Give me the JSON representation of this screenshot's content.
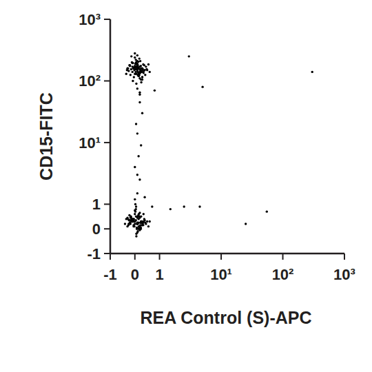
{
  "chart_data": {
    "type": "scatter",
    "x_label": "REA Control (S)-APC",
    "y_label": "CD15-FITC",
    "log": true,
    "color": "#000000",
    "marker": "dot",
    "xlim": [
      -1,
      1000
    ],
    "ylim": [
      -1,
      1000
    ],
    "xticks": [
      -1,
      0,
      1,
      {
        "value": 10,
        "label": "10¹"
      },
      {
        "value": 100,
        "label": "10²"
      },
      {
        "value": 1000,
        "label": "10³"
      }
    ],
    "yticks": [
      -1,
      0,
      1,
      {
        "value": 10,
        "label": "10¹"
      },
      {
        "value": 100,
        "label": "10²"
      },
      {
        "value": 1000,
        "label": "10³"
      }
    ],
    "x": [
      0.1,
      -0.1,
      0.2,
      0.0,
      0.3,
      -0.2,
      0.15,
      0.05,
      0.25,
      -0.05,
      0.35,
      0.1,
      -0.15,
      0.2,
      0.0,
      0.4,
      -0.3,
      0.12,
      0.22,
      0.08,
      -0.08,
      0.28,
      0.18,
      0.02,
      -0.25,
      0.45,
      0.1,
      0.3,
      -0.1,
      0.05,
      0.15,
      0.25,
      -0.02,
      0.38,
      0.0,
      0.2,
      -0.18,
      0.1,
      0.32,
      0.06,
      -0.12,
      0.5,
      0.14,
      0.24,
      -0.06,
      0.04,
      0.36,
      0.16,
      -0.22,
      0.26,
      0.08,
      0.12,
      0.55,
      -0.35,
      0.2,
      0.0,
      0.3,
      0.1,
      -0.1,
      0.22,
      0.18,
      0.02,
      0.42,
      -0.28,
      0.14,
      0.28,
      0.06,
      -0.04,
      0.34,
      0.1,
      0.6,
      -0.2,
      0.2,
      0.08,
      0.16,
      -0.14,
      0.26,
      0.04,
      0.3,
      0.12,
      0.0,
      0.24,
      -0.08,
      0.18,
      0.48,
      -0.32,
      0.1,
      0.22,
      0.06,
      0.14,
      0.0,
      0.1,
      -0.1,
      0.2,
      -0.2,
      0.3,
      0.05,
      -0.05,
      0.15,
      -0.15,
      0.25,
      -0.25,
      0.35,
      -0.3,
      0.4,
      0.12,
      -0.12,
      0.22,
      -0.22,
      0.08,
      -0.08,
      0.18,
      -0.18,
      0.28,
      0.02,
      -0.02,
      0.32,
      -0.35,
      0.45,
      0.06,
      -0.06,
      0.16,
      -0.16,
      0.26,
      -0.26,
      0.04,
      0.14,
      -0.04,
      0.24,
      0.5,
      -0.4,
      0.1,
      0.0,
      0.2,
      -0.1,
      0.3,
      0.05,
      -0.2,
      0.15,
      0.35,
      -0.05,
      0.25,
      0.1,
      -0.15,
      0.0,
      0.6,
      -0.3,
      0.2,
      0.08,
      -0.08,
      0.12,
      0.38,
      -0.12,
      0.02,
      0.22,
      -0.22,
      0.42,
      0.18,
      -0.02,
      0.28,
      0.06,
      -0.28,
      0.32,
      0.14,
      -0.14,
      0.55,
      0.0,
      0.1,
      -0.06,
      0.24,
      0.04,
      -0.18,
      0.16,
      0.34,
      -0.1,
      0.2,
      0.08,
      0.26,
      -0.24,
      0.12,
      0.1,
      0.2,
      0.0,
      0.15,
      0.25,
      0.1,
      0.05,
      0.3,
      0.2,
      0.1,
      0.0,
      0.2,
      0.7,
      0.4,
      3,
      5,
      4.5,
      2.5,
      1.5,
      300,
      55,
      25,
      0.8
    ],
    "values": [
      150,
      140,
      170,
      130,
      160,
      180,
      120,
      200,
      145,
      165,
      135,
      190,
      155,
      110,
      175,
      150,
      160,
      125,
      210,
      185,
      100,
      140,
      230,
      155,
      145,
      170,
      260,
      115,
      195,
      130,
      165,
      105,
      150,
      180,
      240,
      140,
      125,
      170,
      155,
      90,
      200,
      150,
      135,
      175,
      160,
      220,
      145,
      120,
      180,
      95,
      165,
      140,
      185,
      130,
      155,
      280,
      115,
      75,
      170,
      150,
      135,
      190,
      125,
      160,
      205,
      145,
      170,
      115,
      185,
      150,
      140,
      175,
      65,
      155,
      130,
      250,
      160,
      140,
      105,
      180,
      165,
      145,
      195,
      125,
      155,
      150,
      210,
      135,
      170,
      160,
      0.3,
      0.2,
      0.4,
      0.1,
      0.35,
      0.25,
      0.5,
      0.15,
      0.0,
      0.45,
      0.3,
      0.2,
      0.6,
      0.1,
      0.35,
      -0.1,
      0.4,
      0.25,
      0.55,
      0.2,
      0.3,
      0.05,
      0.45,
      0.15,
      0.7,
      0.3,
      0.25,
      0.4,
      0.2,
      -0.2,
      0.35,
      0.1,
      0.5,
      0.3,
      0.15,
      0.8,
      0.25,
      0.4,
      0.0,
      0.3,
      0.2,
      0.45,
      0.6,
      -0.05,
      0.35,
      0.15,
      0.9,
      0.25,
      0.4,
      0.3,
      0.1,
      0.5,
      -0.15,
      0.35,
      0.2,
      0.3,
      0.45,
      0.65,
      0.05,
      0.3,
      0.2,
      0.4,
      0.3,
      1.0,
      0.15,
      0.35,
      0.25,
      0.5,
      0.1,
      0.3,
      -0.3,
      0.4,
      0.2,
      0.55,
      0.3,
      0.1,
      0.75,
      0.25,
      0.4,
      0.05,
      0.35,
      0.2,
      0.6,
      0.15,
      0.3,
      0.45,
      0.0,
      0.25,
      0.35,
      0.5,
      1.5,
      2.5,
      4,
      6,
      9,
      14,
      20,
      30,
      45,
      3,
      1.2,
      60,
      0.9,
      1.3,
      250,
      80,
      0.9,
      0.9,
      0.8,
      140,
      0.7,
      0.2,
      70
    ]
  }
}
